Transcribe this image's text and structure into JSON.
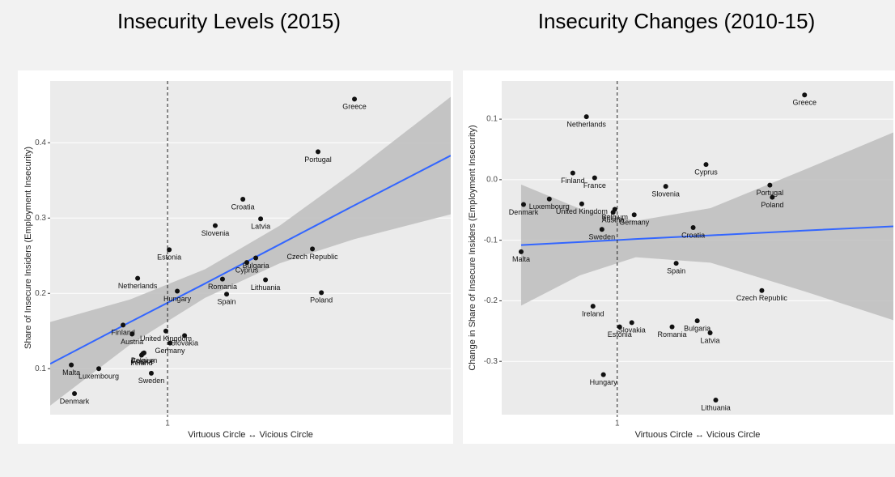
{
  "chart_data": [
    {
      "type": "scatter",
      "title": "Insecurity Levels (2015)",
      "x_label": "Virtuous Circle ↔ Vicious Circle",
      "y_label": "Share of Insecure Insiders (Employment Insecurity)",
      "labels": [
        "Greece",
        "Portugal",
        "Croatia",
        "Latvia",
        "Slovenia",
        "Estonia",
        "Czech Republic",
        "Netherlands",
        "Bulgaria",
        "Cyprus",
        "Romania",
        "Lithuania",
        "Hungary",
        "Spain",
        "Poland",
        "Finland",
        "Austria",
        "United Kingdom",
        "Slovakia",
        "Germany",
        "Belgium",
        "Ireland",
        "France",
        "Malta",
        "Luxembourg",
        "Sweden",
        "Denmark"
      ],
      "x": [
        2.0,
        1.805,
        1.403,
        1.498,
        1.255,
        1.009,
        1.775,
        0.84,
        1.472,
        1.424,
        1.294,
        1.524,
        1.052,
        1.316,
        1.823,
        0.762,
        0.81,
        0.991,
        1.091,
        1.013,
        0.874,
        0.861,
        0.868,
        0.485,
        0.632,
        0.913,
        0.502
      ],
      "values": [
        0.458,
        0.388,
        0.325,
        0.299,
        0.29,
        0.258,
        0.259,
        0.22,
        0.247,
        0.241,
        0.219,
        0.218,
        0.203,
        0.199,
        0.201,
        0.158,
        0.146,
        0.15,
        0.144,
        0.134,
        0.121,
        0.118,
        0.12,
        0.105,
        0.1,
        0.094,
        0.067
      ],
      "color": "#111111",
      "xlim": [
        0.372,
        2.515
      ],
      "ylim": [
        0.039,
        0.482
      ],
      "xticks": [
        1
      ],
      "yticks": [
        0.1,
        0.2,
        0.3,
        0.4
      ],
      "vline": 1,
      "fit": {
        "color": "#3366ff",
        "band_color": "#bdbdbd",
        "x": [
          0.372,
          0.8,
          1.2,
          1.6,
          2.0,
          2.515
        ],
        "values": [
          0.1065,
          0.162,
          0.213,
          0.265,
          0.317,
          0.383
        ],
        "lower": [
          0.051,
          0.132,
          0.194,
          0.24,
          0.272,
          0.305
        ],
        "upper": [
          0.162,
          0.192,
          0.232,
          0.29,
          0.362,
          0.461
        ]
      }
    },
    {
      "type": "scatter",
      "title": "Insecurity Changes (2010-15)",
      "x_label": "Virtuous Circle ↔ Vicious Circle",
      "y_label": "Change in Share of Insecure Insiders (Employment Insecurity)",
      "labels": [
        "Greece",
        "Netherlands",
        "Finland",
        "France",
        "Cyprus",
        "Slovenia",
        "Portugal",
        "Poland",
        "Denmark",
        "Luxembourg",
        "United Kingdom",
        "Belgium",
        "Austria",
        "Germany",
        "Sweden",
        "Croatia",
        "Malta",
        "Spain",
        "Czech Republic",
        "Ireland",
        "Slovakia",
        "Bulgaria",
        "Romania",
        "Latvia",
        "Estonia",
        "Hungary",
        "Lithuania"
      ],
      "x": [
        2.004,
        0.835,
        0.762,
        0.879,
        1.476,
        1.26,
        1.818,
        1.831,
        0.498,
        0.636,
        0.81,
        0.987,
        0.978,
        1.091,
        0.918,
        1.407,
        0.485,
        1.316,
        1.775,
        0.87,
        1.078,
        1.429,
        1.294,
        1.498,
        1.013,
        0.926,
        1.528
      ],
      "values": [
        0.14,
        0.104,
        0.011,
        0.003,
        0.025,
        -0.011,
        -0.009,
        -0.029,
        -0.041,
        -0.032,
        -0.04,
        -0.049,
        -0.054,
        -0.058,
        -0.082,
        -0.079,
        -0.119,
        -0.138,
        -0.183,
        -0.209,
        -0.236,
        -0.233,
        -0.243,
        -0.253,
        -0.243,
        -0.322,
        -0.364
      ],
      "color": "#111111",
      "xlim": [
        0.381,
        2.48
      ],
      "ylim": [
        -0.388,
        0.163
      ],
      "xticks": [
        1
      ],
      "yticks": [
        -0.3,
        -0.2,
        -0.1,
        {
          "value": 0,
          "label": "0.0"
        },
        0.1
      ],
      "vline": 1,
      "fit": {
        "color": "#3366ff",
        "band_color": "#bdbdbd",
        "x": [
          0.485,
          0.8,
          1.1,
          1.5,
          2.0,
          2.48
        ],
        "values": [
          -0.108,
          -0.103,
          -0.098,
          -0.092,
          -0.084,
          -0.077
        ],
        "lower": [
          -0.208,
          -0.158,
          -0.128,
          -0.137,
          -0.184,
          -0.232
        ],
        "upper": [
          -0.008,
          -0.048,
          -0.068,
          -0.047,
          0.016,
          0.078
        ]
      }
    }
  ]
}
